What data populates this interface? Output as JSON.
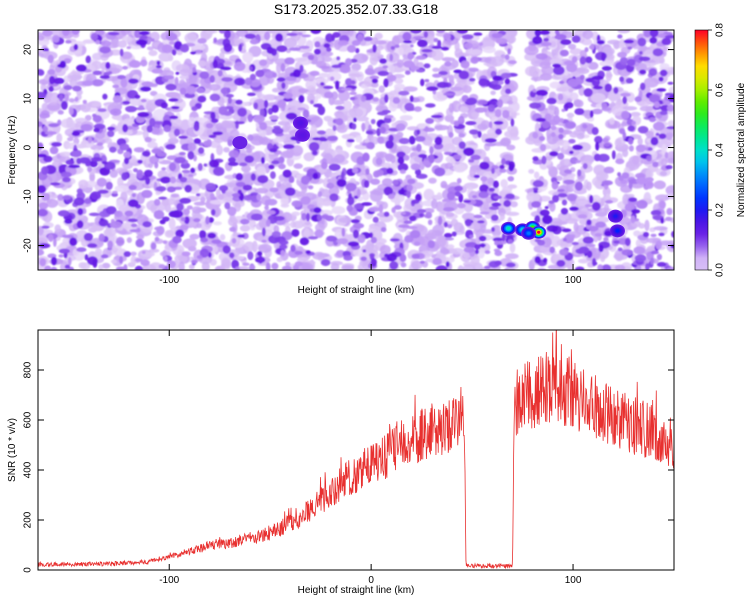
{
  "figure_title": "S173.2025.352.07.33.G18",
  "chart_data": [
    {
      "type": "heatmap",
      "xlabel": "Height of straight line (km)",
      "ylabel": "Frequency (Hz)",
      "xlim": [
        -165,
        150
      ],
      "ylim": [
        -25,
        24
      ],
      "xticks": [
        -100,
        0,
        100
      ],
      "yticks": [
        -20,
        -10,
        0,
        10,
        20
      ],
      "grid": false,
      "colorbar": {
        "label": "Normalized spectral amplitude",
        "range": [
          0.0,
          0.8
        ],
        "ticks": [
          0.0,
          0.2,
          0.4,
          0.6,
          0.8
        ],
        "colormap": "rainbow"
      },
      "gap_x_range": [
        71,
        79
      ],
      "hotspots": [
        {
          "x": 68,
          "y": -16.5,
          "value": 0.42
        },
        {
          "x": 75,
          "y": -16.8,
          "value": 0.4
        },
        {
          "x": 80,
          "y": -16.3,
          "value": 0.55
        },
        {
          "x": 83,
          "y": -17.3,
          "value": 0.8
        },
        {
          "x": 78,
          "y": -17.5,
          "value": 0.3
        },
        {
          "x": 121,
          "y": -14.0,
          "value": 0.2
        },
        {
          "x": 122,
          "y": -17.0,
          "value": 0.22
        },
        {
          "x": -35,
          "y": 5.0,
          "value": 0.15
        },
        {
          "x": -34,
          "y": 2.5,
          "value": 0.14
        },
        {
          "x": -65,
          "y": 1.0,
          "value": 0.12
        }
      ],
      "background_level": 0.06
    },
    {
      "type": "line",
      "xlabel": "Height of straight line (km)",
      "ylabel": "SNR (10 * v/v)",
      "xlim": [
        -165,
        150
      ],
      "ylim": [
        0,
        960
      ],
      "xticks": [
        -100,
        0,
        100
      ],
      "yticks": [
        0,
        200,
        400,
        600,
        800
      ],
      "grid": false,
      "series": [
        {
          "color": "#e8302f",
          "envelope": [
            {
              "x": -165,
              "y": 20
            },
            {
              "x": -130,
              "y": 22
            },
            {
              "x": -110,
              "y": 30
            },
            {
              "x": -100,
              "y": 55
            },
            {
              "x": -90,
              "y": 75
            },
            {
              "x": -80,
              "y": 100
            },
            {
              "x": -70,
              "y": 110
            },
            {
              "x": -60,
              "y": 130
            },
            {
              "x": -50,
              "y": 150
            },
            {
              "x": -40,
              "y": 190
            },
            {
              "x": -30,
              "y": 250
            },
            {
              "x": -20,
              "y": 320
            },
            {
              "x": -10,
              "y": 380
            },
            {
              "x": 0,
              "y": 430
            },
            {
              "x": 10,
              "y": 480
            },
            {
              "x": 20,
              "y": 530
            },
            {
              "x": 30,
              "y": 570
            },
            {
              "x": 40,
              "y": 600
            },
            {
              "x": 46,
              "y": 610
            },
            {
              "x": 47,
              "y": 15
            },
            {
              "x": 70,
              "y": 12
            },
            {
              "x": 71,
              "y": 680
            },
            {
              "x": 80,
              "y": 720
            },
            {
              "x": 90,
              "y": 760
            },
            {
              "x": 100,
              "y": 720
            },
            {
              "x": 110,
              "y": 670
            },
            {
              "x": 120,
              "y": 630
            },
            {
              "x": 130,
              "y": 590
            },
            {
              "x": 140,
              "y": 560
            },
            {
              "x": 150,
              "y": 510
            }
          ],
          "noise_amplitude_fraction": 0.18,
          "peak": {
            "x": 90,
            "y": 950
          }
        }
      ]
    }
  ]
}
